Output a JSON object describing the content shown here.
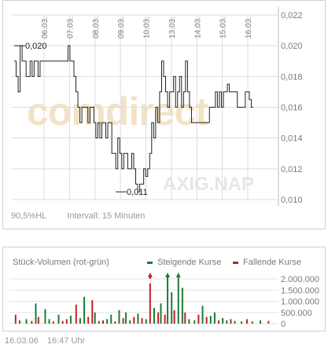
{
  "chart_data": [
    {
      "type": "line",
      "x_ticks": [
        "06.03.",
        "07.03.",
        "08.03.",
        "09.03.",
        "10.03.",
        "13.03.",
        "14.03.",
        "15.03.",
        "16.03."
      ],
      "y_ticks": [
        "0,022",
        "0,020",
        "0,018",
        "0,016",
        "0,014",
        "0,012",
        "0,010"
      ],
      "ylim": [
        0.01,
        0.022
      ],
      "grid": true,
      "series": [
        {
          "values": [
            0.019,
            0.018,
            0.017,
            0.02,
            0.019,
            0.019,
            0.018,
            0.018,
            0.019,
            0.018,
            0.019,
            0.019,
            0.018,
            0.019,
            0.019,
            0.019,
            0.019,
            0.019,
            0.019,
            0.019,
            0.019,
            0.019,
            0.019,
            0.019,
            0.019,
            0.019,
            0.019,
            0.02,
            0.019,
            0.019,
            0.018,
            0.017,
            0.016,
            0.015,
            0.016,
            0.016,
            0.016,
            0.015,
            0.016,
            0.016,
            0.015,
            0.014,
            0.015,
            0.014,
            0.015,
            0.015,
            0.014,
            0.015,
            0.015,
            0.013,
            0.013,
            0.012,
            0.014,
            0.013,
            0.012,
            0.013,
            0.013,
            0.012,
            0.012,
            0.013,
            0.012,
            0.011,
            0.0105,
            0.011,
            0.011,
            0.012,
            0.0115,
            0.012,
            0.013,
            0.015,
            0.014,
            0.016,
            0.015,
            0.017,
            0.019,
            0.018,
            0.017,
            0.016,
            0.017,
            0.017,
            0.018,
            0.016,
            0.017,
            0.018,
            0.016,
            0.017,
            0.019,
            0.017,
            0.016,
            0.015,
            0.015,
            0.015,
            0.015,
            0.015,
            0.015,
            0.015,
            0.015,
            0.015,
            0.016,
            0.016,
            0.016,
            0.017,
            0.016,
            0.017,
            0.016,
            0.017,
            0.017,
            0.0175,
            0.017,
            0.017,
            0.017,
            0.017,
            0.016,
            0.016,
            0.016,
            0.016,
            0.017,
            0.017,
            0.0165,
            0.016,
            0.016
          ]
        }
      ],
      "annotations": [
        {
          "text": "0,020",
          "y": 0.02
        },
        {
          "text": "0,011",
          "y": 0.0105
        }
      ],
      "footer_left": "90,5%HL",
      "footer_right": "Intervall: 15 Minuten"
    },
    {
      "type": "bar",
      "title": "Stück-Volumen (rot-grün)",
      "legend": [
        {
          "name": "Steigende Kurse",
          "color": "#1f7a3a"
        },
        {
          "name": "Fallende Kurse",
          "color": "#c42121"
        }
      ],
      "y_ticks": [
        "2.000.000",
        "1.500.000",
        "1.000.000",
        "500.000",
        "0"
      ],
      "ylim": [
        0,
        2000000
      ],
      "bars": [
        {
          "x": 0.02,
          "v": 400000,
          "c": "red"
        },
        {
          "x": 0.035,
          "v": 150000,
          "c": "green"
        },
        {
          "x": 0.06,
          "v": 200000,
          "c": "green"
        },
        {
          "x": 0.08,
          "v": 120000,
          "c": "red"
        },
        {
          "x": 0.095,
          "v": 900000,
          "c": "green"
        },
        {
          "x": 0.105,
          "v": 300000,
          "c": "red"
        },
        {
          "x": 0.13,
          "v": 650000,
          "c": "green"
        },
        {
          "x": 0.145,
          "v": 200000,
          "c": "green"
        },
        {
          "x": 0.16,
          "v": 100000,
          "c": "red"
        },
        {
          "x": 0.18,
          "v": 400000,
          "c": "green"
        },
        {
          "x": 0.195,
          "v": 120000,
          "c": "red"
        },
        {
          "x": 0.21,
          "v": 200000,
          "c": "red"
        },
        {
          "x": 0.225,
          "v": 350000,
          "c": "green"
        },
        {
          "x": 0.245,
          "v": 850000,
          "c": "red"
        },
        {
          "x": 0.26,
          "v": 250000,
          "c": "green"
        },
        {
          "x": 0.275,
          "v": 1200000,
          "c": "green"
        },
        {
          "x": 0.29,
          "v": 300000,
          "c": "red"
        },
        {
          "x": 0.305,
          "v": 1050000,
          "c": "red"
        },
        {
          "x": 0.315,
          "v": 500000,
          "c": "green"
        },
        {
          "x": 0.33,
          "v": 120000,
          "c": "green"
        },
        {
          "x": 0.345,
          "v": 150000,
          "c": "red"
        },
        {
          "x": 0.36,
          "v": 200000,
          "c": "green"
        },
        {
          "x": 0.375,
          "v": 400000,
          "c": "green"
        },
        {
          "x": 0.39,
          "v": 100000,
          "c": "red"
        },
        {
          "x": 0.405,
          "v": 600000,
          "c": "green"
        },
        {
          "x": 0.42,
          "v": 250000,
          "c": "red"
        },
        {
          "x": 0.43,
          "v": 500000,
          "c": "green"
        },
        {
          "x": 0.445,
          "v": 150000,
          "c": "green"
        },
        {
          "x": 0.46,
          "v": 300000,
          "c": "red"
        },
        {
          "x": 0.475,
          "v": 450000,
          "c": "green"
        },
        {
          "x": 0.49,
          "v": 250000,
          "c": "red"
        },
        {
          "x": 0.505,
          "v": 200000,
          "c": "green"
        },
        {
          "x": 0.52,
          "v": 1800000,
          "c": "red"
        },
        {
          "x": 0.535,
          "v": 700000,
          "c": "green"
        },
        {
          "x": 0.55,
          "v": 500000,
          "c": "red"
        },
        {
          "x": 0.56,
          "v": 900000,
          "c": "green"
        },
        {
          "x": 0.575,
          "v": 400000,
          "c": "red"
        },
        {
          "x": 0.585,
          "v": 2100000,
          "c": "green"
        },
        {
          "x": 0.6,
          "v": 1400000,
          "c": "green"
        },
        {
          "x": 0.61,
          "v": 600000,
          "c": "red"
        },
        {
          "x": 0.625,
          "v": 2100000,
          "c": "green"
        },
        {
          "x": 0.64,
          "v": 1600000,
          "c": "green"
        },
        {
          "x": 0.65,
          "v": 500000,
          "c": "red"
        },
        {
          "x": 0.665,
          "v": 200000,
          "c": "green"
        },
        {
          "x": 0.685,
          "v": 150000,
          "c": "green"
        },
        {
          "x": 0.7,
          "v": 400000,
          "c": "red"
        },
        {
          "x": 0.715,
          "v": 800000,
          "c": "green"
        },
        {
          "x": 0.73,
          "v": 300000,
          "c": "red"
        },
        {
          "x": 0.745,
          "v": 350000,
          "c": "green"
        },
        {
          "x": 0.76,
          "v": 500000,
          "c": "green"
        },
        {
          "x": 0.775,
          "v": 150000,
          "c": "red"
        },
        {
          "x": 0.79,
          "v": 250000,
          "c": "green"
        },
        {
          "x": 0.805,
          "v": 150000,
          "c": "green"
        },
        {
          "x": 0.82,
          "v": 200000,
          "c": "red"
        },
        {
          "x": 0.835,
          "v": 120000,
          "c": "green"
        },
        {
          "x": 0.86,
          "v": 100000,
          "c": "green"
        },
        {
          "x": 0.88,
          "v": 200000,
          "c": "red"
        },
        {
          "x": 0.9,
          "v": 100000,
          "c": "green"
        },
        {
          "x": 0.93,
          "v": 150000,
          "c": "green"
        },
        {
          "x": 0.96,
          "v": 120000,
          "c": "red"
        }
      ],
      "offscale_arrows": [
        {
          "x": 0.52,
          "c": "red"
        },
        {
          "x": 0.585,
          "c": "green"
        },
        {
          "x": 0.625,
          "c": "green"
        }
      ]
    }
  ],
  "watermarks": {
    "brand": "comdirect",
    "ticker": "AXIG.NAP"
  },
  "footer": {
    "date": "16.03.06",
    "time": "16:47 Uhr"
  },
  "colors": {
    "up": "#1f7a3a",
    "down": "#c42121",
    "line": "#222222",
    "grid": "#dcdcdc"
  }
}
